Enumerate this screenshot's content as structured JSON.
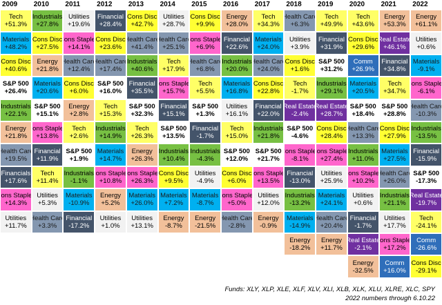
{
  "chart_data": {
    "type": "table",
    "title": "",
    "years": [
      "2009",
      "2010",
      "2011",
      "2012",
      "2013",
      "2014",
      "2015",
      "2016",
      "2017",
      "2018",
      "2019",
      "2020",
      "2021",
      "2022"
    ],
    "columns": [
      [
        [
          "Tech",
          "+51.3%"
        ],
        [
          "Materials",
          "+48.2%"
        ],
        [
          "Cons Disc",
          "+40.6%"
        ],
        [
          "S&P 500",
          "+26.4%"
        ],
        [
          "Industrials",
          "+22.1%"
        ],
        [
          "Energy",
          "+21.8%"
        ],
        [
          "Health Care",
          "+19.5%"
        ],
        [
          "Financials",
          "+17.6%"
        ],
        [
          "Cons Staples",
          "+14.3%"
        ],
        [
          "Utilities",
          "+11.7%"
        ]
      ],
      [
        [
          "Industrials",
          "+27.8%"
        ],
        [
          "Cons Disc",
          "+27.5%"
        ],
        [
          "Energy",
          "+21.8%"
        ],
        [
          "Materials",
          "+20.6%"
        ],
        [
          "S&P 500",
          "+15.1%"
        ],
        [
          "Cons Staples",
          "+13.8%"
        ],
        [
          "Financial",
          "+11.9%"
        ],
        [
          "Tech",
          "+11.4%"
        ],
        [
          "Utilities",
          "+5.3%"
        ],
        [
          "Health Care",
          "+3.3%"
        ]
      ],
      [
        [
          "Utilities",
          "+19.6%"
        ],
        [
          "Cons Staples",
          "+14.1%"
        ],
        [
          "Health Care",
          "+12.4%"
        ],
        [
          "Cons Disc",
          "+6.0%"
        ],
        [
          "Energy",
          "+2.8%"
        ],
        [
          "Tech",
          "+2.6%"
        ],
        [
          "S&P 500",
          "+1.9%"
        ],
        [
          "Industrials",
          "-1.1%"
        ],
        [
          "Materials",
          "-10.9%"
        ],
        [
          "Financial",
          "-17.2%"
        ]
      ],
      [
        [
          "Financial",
          "+28.4%"
        ],
        [
          "Cons Disc",
          "+23.6%"
        ],
        [
          "Health Care",
          "+17.4%"
        ],
        [
          "S&P 500",
          "+16.0%"
        ],
        [
          "Tech",
          "+15.3%"
        ],
        [
          "Industrials",
          "+14.9%"
        ],
        [
          "Materials",
          "+14.7%"
        ],
        [
          "Cons Staples",
          "+10.8%"
        ],
        [
          "Energy",
          "+5.2%"
        ],
        [
          "Utilities",
          "+1.0%"
        ]
      ],
      [
        [
          "Cons Disc",
          "+42.7%"
        ],
        [
          "Health Care",
          "+41.4%"
        ],
        [
          "Industrials",
          "+40.6%"
        ],
        [
          "Financial",
          "+35.5%"
        ],
        [
          "S&P 500",
          "+32.3%"
        ],
        [
          "Tech",
          "+26.3%"
        ],
        [
          "Energy",
          "+26.3%"
        ],
        [
          "Cons Staples",
          "+26.3%"
        ],
        [
          "Materials",
          "+26.0%"
        ],
        [
          "Utilities",
          "+13.1%"
        ]
      ],
      [
        [
          "Utilities",
          "+28.7%"
        ],
        [
          "Health Care",
          "+25.1%"
        ],
        [
          "Tech",
          "+17.9%"
        ],
        [
          "Cons Staples",
          "+15.7%"
        ],
        [
          "Financial",
          "+15.1%"
        ],
        [
          "S&P 500",
          "+13.5%"
        ],
        [
          "Industrials",
          "+10.4%"
        ],
        [
          "Cons Disc",
          "+9.5%"
        ],
        [
          "Materials",
          "+7.2%"
        ],
        [
          "Energy",
          "-8.7%"
        ]
      ],
      [
        [
          "Cons Disc",
          "+9.9%"
        ],
        [
          "Cons Staples",
          "+6.9%"
        ],
        [
          "Health Care",
          "+6.8%"
        ],
        [
          "Tech",
          "+5.5%"
        ],
        [
          "S&P 500",
          "+1.3%"
        ],
        [
          "Financial",
          "-1.7%"
        ],
        [
          "Industrials",
          "-4.3%"
        ],
        [
          "Utilities",
          "-4.9%"
        ],
        [
          "Materials",
          "-8.7%"
        ],
        [
          "Energy",
          "-21.5%"
        ]
      ],
      [
        [
          "Energy",
          "+28.0%"
        ],
        [
          "Financial",
          "+22.6%"
        ],
        [
          "Industrials",
          "+20.0%"
        ],
        [
          "Materials",
          "+16.8%"
        ],
        [
          "Utilities",
          "+16.1%"
        ],
        [
          "Tech",
          "+15.0%"
        ],
        [
          "S&P 500",
          "+12.0%"
        ],
        [
          "Cons Disc",
          "+6.0%"
        ],
        [
          "Cons Staples",
          "+5.0%"
        ],
        [
          "Health Care",
          "-2.8%"
        ]
      ],
      [
        [
          "Tech",
          "+34.3%"
        ],
        [
          "Materials",
          "+24.0%"
        ],
        [
          "Health Care",
          "+24.0%"
        ],
        [
          "Cons Disc",
          "+22.8%"
        ],
        [
          "Financial",
          "+22.0%"
        ],
        [
          "Industrials",
          "+21.8%"
        ],
        [
          "S&P 500",
          "+21.7%"
        ],
        [
          "Cons Staples",
          "+13.5%"
        ],
        [
          "Utilities",
          "+12.0%"
        ],
        [
          "Energy",
          "-0.9%"
        ]
      ],
      [
        [
          "Health Care",
          "+6.3%"
        ],
        [
          "Utilities",
          "+3.9%"
        ],
        [
          "Cons Disc",
          "+1.6%"
        ],
        [
          "Tech",
          "-1.7%"
        ],
        [
          "Real Estate",
          "-2.4%"
        ],
        [
          "S&P 500",
          "-4.6%"
        ],
        [
          "Cons Staples",
          "-8.1%"
        ],
        [
          "Financial",
          "-13.0%"
        ],
        [
          "Industrials",
          "-13.2%"
        ],
        [
          "Materials",
          "-14.9%"
        ],
        [
          "Energy",
          "-18.2%"
        ]
      ],
      [
        [
          "Tech",
          "+49.9%"
        ],
        [
          "Financial",
          "+31.9%"
        ],
        [
          "S&P 500",
          "+31.2%"
        ],
        [
          "Industrials",
          "+29.1%"
        ],
        [
          "Real Estate",
          "+28.7%"
        ],
        [
          "Cons Disc",
          "+28.4%"
        ],
        [
          "Cons Staples",
          "+27.4%"
        ],
        [
          "Utilities",
          "+25.9%"
        ],
        [
          "Materials",
          "+24.1%"
        ],
        [
          "Health Care",
          "+20.4%"
        ],
        [
          "Energy",
          "+11.7%"
        ]
      ],
      [
        [
          "Tech",
          "+43.6%"
        ],
        [
          "Cons Disc",
          "+29.6%"
        ],
        [
          "Comm",
          "+26.9%"
        ],
        [
          "Materials",
          "+20.5%"
        ],
        [
          "S&P 500",
          "+18.4%"
        ],
        [
          "Health Care",
          "+13.3%"
        ],
        [
          "Industrials",
          "+11.0%"
        ],
        [
          "Cons Staples",
          "+10.2%"
        ],
        [
          "Utilities",
          "+0.6%"
        ],
        [
          "Financial",
          "-1.7%"
        ],
        [
          "Real Estate",
          "-2.1%"
        ],
        [
          "Energy",
          "-32.5%"
        ]
      ],
      [
        [
          "Energy",
          "+53.3%"
        ],
        [
          "Real Estate",
          "+46.1%"
        ],
        [
          "Financial",
          "+34.8%"
        ],
        [
          "Tech",
          "+34.7%"
        ],
        [
          "S&P 500",
          "+28.8%"
        ],
        [
          "Cons Disc",
          "+27.9%"
        ],
        [
          "Materials",
          "+27.5%"
        ],
        [
          "Health Care",
          "+26.0%"
        ],
        [
          "Industrials",
          "+21.1%"
        ],
        [
          "Utilities",
          "+17.7%"
        ],
        [
          "Cons Staples",
          "+17.2%"
        ],
        [
          "Comm",
          "+16.0%"
        ]
      ],
      [
        [
          "Energy",
          "+61.1%"
        ],
        [
          "Utilities",
          "+0.6%"
        ],
        [
          "Materials",
          "-9.1%"
        ],
        [
          "Cons Staples",
          "-6.1%"
        ],
        [
          "Health Care",
          "-10.3%"
        ],
        [
          "Industrials",
          "-13.5%"
        ],
        [
          "Financial",
          "-15.9%"
        ],
        [
          "S&P 500",
          "-17.3%"
        ],
        [
          "Real Estate",
          "-19.7%"
        ],
        [
          "Tech",
          "-24.1%"
        ],
        [
          "Comm",
          "-26.6%"
        ],
        [
          "Cons Disc",
          "-29.1%"
        ]
      ]
    ],
    "sector_colors": {
      "Tech": "#ffff66",
      "Materials": "#00b0f0",
      "Cons Disc": "#ffff33",
      "S&P 500": "#ffffff",
      "Industrials": "#77c043",
      "Energy": "#f2c09a",
      "Health Care": "#8497b0",
      "Financials": "#44546a",
      "Financial": "#44546a",
      "Cons Staples": "#ff66cc",
      "Utilities": "#f2f2f2",
      "Real Estate": "#7030a0",
      "Comm": "#2f6eba"
    },
    "footer": [
      "Funds: XLY, XLP, XLE, XLF, XLV, XLI, XLB, XLK, XLU, XLRE, XLC, SPY",
      "2022 numbers through 6.10.22"
    ]
  }
}
